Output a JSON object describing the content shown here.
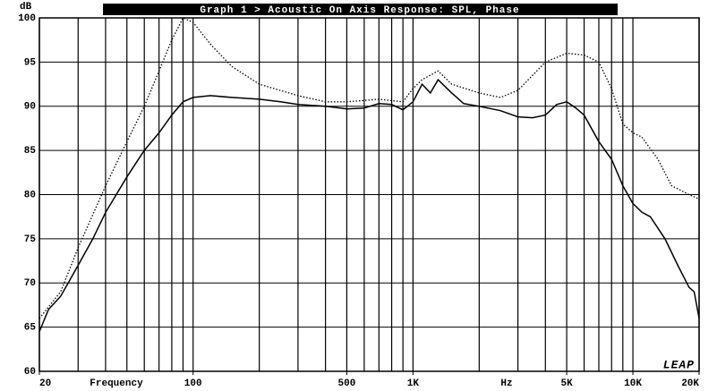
{
  "chart_data": {
    "type": "line",
    "title": "Graph 1 > Acoustic On Axis Response: SPL, Phase",
    "y_label": "dB",
    "x_label": "Frequency",
    "x_unit": "Hz",
    "logo": "LEAP",
    "xscale": "log",
    "xlim": [
      20,
      20000
    ],
    "ylim": [
      60,
      100
    ],
    "xticks": [
      20,
      100,
      500,
      {
        "value": 1000,
        "label": "1K"
      },
      {
        "value": 5000,
        "label": "5K"
      },
      {
        "value": 10000,
        "label": "10K"
      },
      {
        "value": 20000,
        "label": "20K"
      }
    ],
    "yticks": [
      60,
      65,
      70,
      75,
      80,
      85,
      90,
      95,
      100
    ],
    "xgrid": [
      20,
      30,
      40,
      50,
      60,
      70,
      80,
      90,
      100,
      200,
      300,
      400,
      500,
      600,
      700,
      800,
      900,
      1000,
      2000,
      3000,
      4000,
      5000,
      6000,
      7000,
      8000,
      9000,
      10000,
      20000
    ],
    "grid": true,
    "series": [
      {
        "color": "#000000",
        "dash": "solid",
        "x": [
          20,
          22,
          25,
          30,
          35,
          40,
          50,
          60,
          70,
          80,
          90,
          100,
          120,
          150,
          200,
          250,
          300,
          400,
          500,
          600,
          700,
          800,
          900,
          1000,
          1100,
          1200,
          1300,
          1500,
          1700,
          2000,
          2500,
          3000,
          3500,
          4000,
          4500,
          5000,
          5500,
          6000,
          7000,
          8000,
          9000,
          10000,
          11000,
          12000,
          14000,
          16000,
          18000,
          19000,
          20000
        ],
        "values": [
          64.5,
          67,
          68.5,
          72,
          75,
          78,
          82,
          85,
          87,
          89,
          90.5,
          91,
          91.2,
          91,
          90.8,
          90.5,
          90.2,
          90,
          89.7,
          89.8,
          90.3,
          90.2,
          89.6,
          90.5,
          92.5,
          91.5,
          93,
          91.5,
          90.3,
          90,
          89.5,
          88.8,
          88.7,
          89,
          90.2,
          90.5,
          89.8,
          89,
          86,
          84,
          81,
          79,
          78,
          77.5,
          75,
          72,
          69.5,
          69,
          66
        ]
      },
      {
        "color": "#000000",
        "dash": "dotted",
        "x": [
          20,
          25,
          30,
          40,
          50,
          60,
          70,
          80,
          90,
          100,
          120,
          150,
          200,
          300,
          400,
          500,
          700,
          900,
          1000,
          1100,
          1300,
          1500,
          2000,
          2500,
          3000,
          4000,
          5000,
          6000,
          7000,
          8000,
          9000,
          10000,
          11000,
          13000,
          15000,
          18000,
          20000
        ],
        "values": [
          66,
          69,
          74,
          81,
          86,
          90,
          94,
          97.5,
          100,
          99.5,
          97,
          94.5,
          92.5,
          91.2,
          90.5,
          90.5,
          90.8,
          90.5,
          92,
          93,
          94,
          92.5,
          91.5,
          91,
          91.8,
          95,
          96,
          95.8,
          95,
          92,
          88,
          87,
          86.5,
          84,
          81,
          80,
          79.5
        ]
      }
    ]
  }
}
